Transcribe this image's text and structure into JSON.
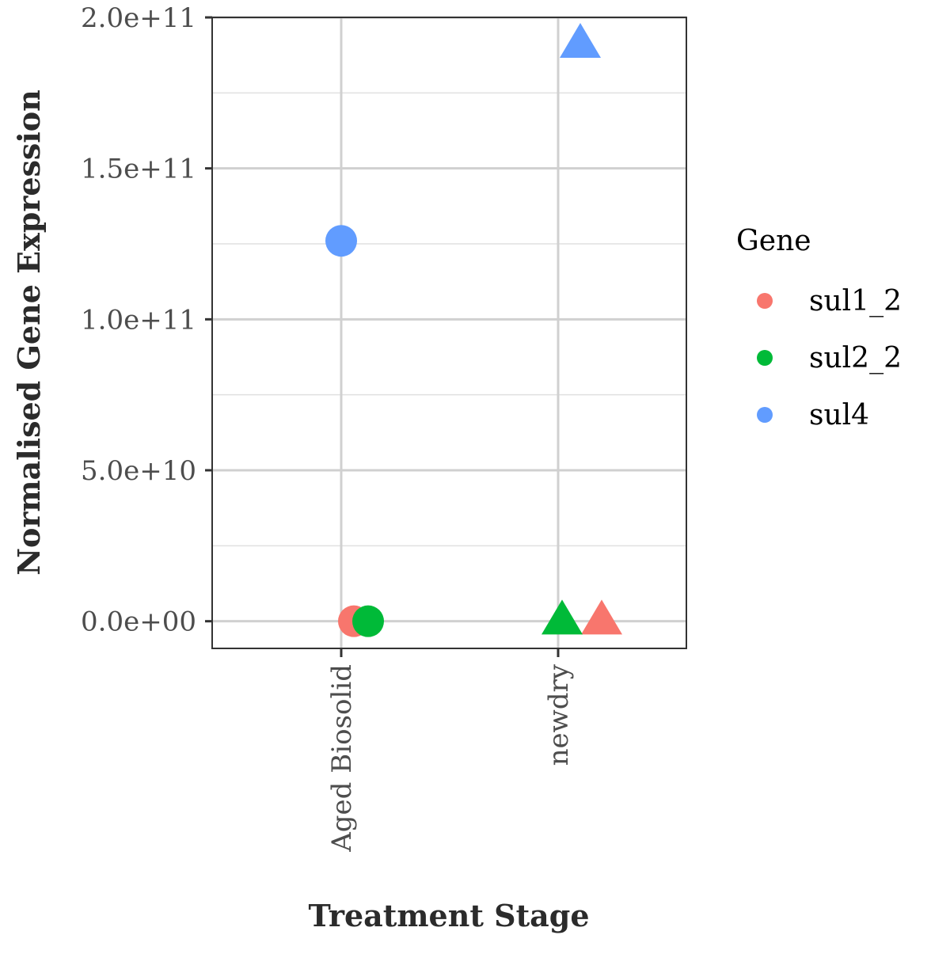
{
  "chart_data": {
    "type": "scatter",
    "xlabel": "Treatment Stage",
    "ylabel": "Normalised Gene Expression",
    "categories": [
      "Aged Biosolid",
      "newdry"
    ],
    "ylim": [
      -9000000000,
      200000000000
    ],
    "yticks": [
      0,
      50000000000,
      100000000000,
      150000000000,
      200000000000
    ],
    "ytick_labels": [
      "0.0e+00",
      "5.0e+10",
      "1.0e+11",
      "1.5e+11",
      "2.0e+11"
    ],
    "grid": true,
    "legend": {
      "title": "Gene",
      "position": "right"
    },
    "series": [
      {
        "name": "sul1_2",
        "color": "#F8766D",
        "points": [
          {
            "category": "Aged Biosolid",
            "y": 0,
            "shape": "circle"
          },
          {
            "category": "newdry",
            "y": 0,
            "shape": "triangle"
          }
        ]
      },
      {
        "name": "sul2_2",
        "color": "#00BA38",
        "points": [
          {
            "category": "Aged Biosolid",
            "y": 0,
            "shape": "circle"
          },
          {
            "category": "newdry",
            "y": 0,
            "shape": "triangle"
          }
        ]
      },
      {
        "name": "sul4",
        "color": "#619CFF",
        "points": [
          {
            "category": "Aged Biosolid",
            "y": 126000000000,
            "shape": "circle"
          },
          {
            "category": "newdry",
            "y": 191000000000,
            "shape": "triangle"
          }
        ]
      }
    ]
  }
}
